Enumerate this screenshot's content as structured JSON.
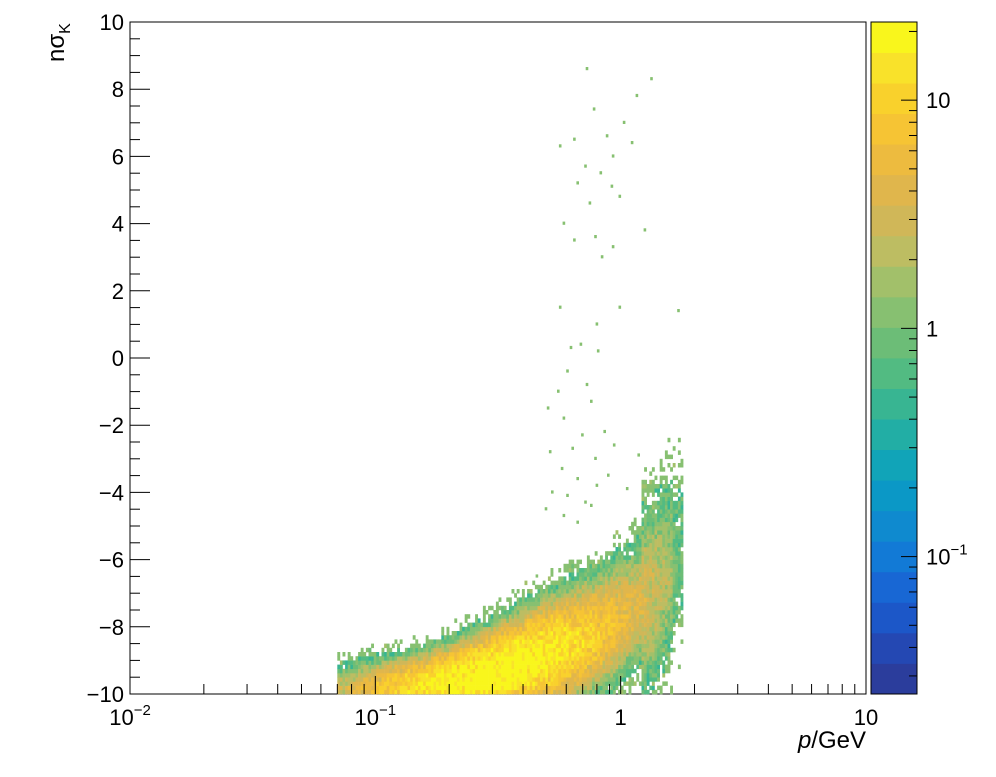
{
  "chart_data": {
    "type": "heatmap",
    "title": "",
    "x_axis": {
      "label_main": "p",
      "label_unit": "/GeV",
      "scale": "log",
      "range": [
        0.01,
        10
      ],
      "tick_labels": [
        {
          "value": 0.01,
          "base": "10",
          "exp": "−2"
        },
        {
          "value": 0.1,
          "base": "10",
          "exp": "−1"
        },
        {
          "value": 1,
          "base": "1",
          "exp": ""
        },
        {
          "value": 10,
          "base": "10",
          "exp": ""
        }
      ]
    },
    "y_axis": {
      "label_main": "nσ",
      "label_sub": "K",
      "scale": "linear",
      "range": [
        -10,
        10
      ],
      "tick_labels": [
        "10",
        "8",
        "6",
        "4",
        "2",
        "0",
        "−2",
        "−4",
        "−6",
        "−8",
        "−10"
      ],
      "tick_values": [
        10,
        8,
        6,
        4,
        2,
        0,
        -2,
        -4,
        -6,
        -8,
        -10
      ]
    },
    "z_axis": {
      "scale": "log",
      "range": [
        0.025,
        22
      ],
      "tick_labels": [
        {
          "value": 10,
          "base": "10",
          "exp": ""
        },
        {
          "value": 1,
          "base": "1",
          "exp": ""
        },
        {
          "value": 0.1,
          "base": "10",
          "exp": "−1"
        }
      ],
      "palette": [
        "#2b3d9c",
        "#2448b3",
        "#1c57c8",
        "#1867d4",
        "#127ad6",
        "#0f8acf",
        "#0b98c6",
        "#11a4b8",
        "#22aea5",
        "#38b592",
        "#52bb82",
        "#6cbd77",
        "#87c071",
        "#a2c06a",
        "#bdbd62",
        "#d0b758",
        "#e0b64c",
        "#edbb3f",
        "#f6c434",
        "#f9d12c",
        "#f9e22a",
        "#f9f61c"
      ]
    },
    "band": {
      "description_points": [
        {
          "p": 0.08,
          "nsigma": -9.9
        },
        {
          "p": 0.1,
          "nsigma": -9.8
        },
        {
          "p": 0.2,
          "nsigma": -9.6
        },
        {
          "p": 0.3,
          "nsigma": -9.3
        },
        {
          "p": 0.5,
          "nsigma": -8.7
        },
        {
          "p": 0.8,
          "nsigma": -8.1
        },
        {
          "p": 1.0,
          "nsigma": -7.6
        },
        {
          "p": 1.3,
          "nsigma": -7.0
        },
        {
          "p": 1.6,
          "nsigma": -6.1
        },
        {
          "p": 1.75,
          "nsigma": -5.6
        }
      ],
      "p_min": 0.07,
      "p_max": 1.78,
      "peak_counts": 22
    },
    "outliers": [
      {
        "p": 0.72,
        "nsigma": 8.6
      },
      {
        "p": 1.32,
        "nsigma": 8.3
      },
      {
        "p": 1.15,
        "nsigma": 7.8
      },
      {
        "p": 0.77,
        "nsigma": 7.4
      },
      {
        "p": 1.02,
        "nsigma": 7.0
      },
      {
        "p": 0.87,
        "nsigma": 6.6
      },
      {
        "p": 1.1,
        "nsigma": 6.4
      },
      {
        "p": 0.56,
        "nsigma": 6.3
      },
      {
        "p": 0.64,
        "nsigma": 6.5
      },
      {
        "p": 0.92,
        "nsigma": 6.0
      },
      {
        "p": 0.71,
        "nsigma": 5.7
      },
      {
        "p": 0.82,
        "nsigma": 5.5
      },
      {
        "p": 0.66,
        "nsigma": 5.2
      },
      {
        "p": 0.91,
        "nsigma": 5.1
      },
      {
        "p": 0.98,
        "nsigma": 4.8
      },
      {
        "p": 0.74,
        "nsigma": 4.6
      },
      {
        "p": 0.58,
        "nsigma": 4.0
      },
      {
        "p": 1.24,
        "nsigma": 3.8
      },
      {
        "p": 0.64,
        "nsigma": 3.5
      },
      {
        "p": 0.78,
        "nsigma": 3.6
      },
      {
        "p": 0.92,
        "nsigma": 3.3
      },
      {
        "p": 0.83,
        "nsigma": 3.0
      },
      {
        "p": 0.56,
        "nsigma": 1.5
      },
      {
        "p": 0.98,
        "nsigma": 1.5
      },
      {
        "p": 1.7,
        "nsigma": 1.4
      },
      {
        "p": 0.79,
        "nsigma": 1.0
      },
      {
        "p": 0.68,
        "nsigma": 0.4
      },
      {
        "p": 0.62,
        "nsigma": 0.3
      },
      {
        "p": 0.8,
        "nsigma": 0.2
      },
      {
        "p": 0.6,
        "nsigma": -0.4
      },
      {
        "p": 0.72,
        "nsigma": -0.8
      },
      {
        "p": 0.55,
        "nsigma": -1.0
      },
      {
        "p": 0.5,
        "nsigma": -1.5
      },
      {
        "p": 0.75,
        "nsigma": -1.3
      },
      {
        "p": 0.58,
        "nsigma": -1.8
      },
      {
        "p": 0.69,
        "nsigma": -2.3
      },
      {
        "p": 0.85,
        "nsigma": -2.2
      },
      {
        "p": 0.51,
        "nsigma": -2.8
      },
      {
        "p": 0.63,
        "nsigma": -2.7
      },
      {
        "p": 0.78,
        "nsigma": -3.0
      },
      {
        "p": 0.93,
        "nsigma": -2.6
      },
      {
        "p": 1.17,
        "nsigma": -2.9
      },
      {
        "p": 0.57,
        "nsigma": -3.3
      },
      {
        "p": 0.66,
        "nsigma": -3.6
      },
      {
        "p": 0.79,
        "nsigma": -3.8
      },
      {
        "p": 0.88,
        "nsigma": -3.5
      },
      {
        "p": 1.05,
        "nsigma": -3.9
      },
      {
        "p": 0.52,
        "nsigma": -4.0
      },
      {
        "p": 0.6,
        "nsigma": -4.1
      },
      {
        "p": 0.71,
        "nsigma": -4.3
      },
      {
        "p": 0.49,
        "nsigma": -4.5
      },
      {
        "p": 0.58,
        "nsigma": -4.7
      },
      {
        "p": 0.66,
        "nsigma": -4.9
      },
      {
        "p": 0.75,
        "nsigma": -4.4
      },
      {
        "p": 0.45,
        "nsigma": -6.5
      }
    ]
  }
}
